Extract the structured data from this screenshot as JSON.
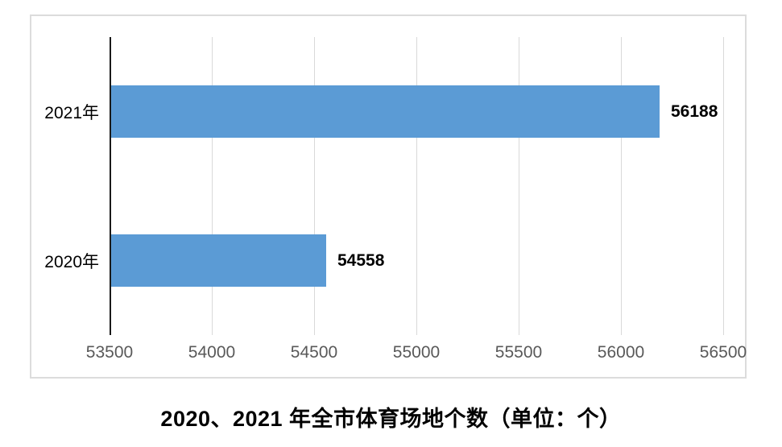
{
  "chart_data": {
    "type": "bar",
    "orientation": "horizontal",
    "title": "2020、2021 年全市体育场地个数（单位：个）",
    "categories": [
      "2021年",
      "2020年"
    ],
    "values": [
      56188,
      54558
    ],
    "data_labels": [
      "56188",
      "54558"
    ],
    "x_ticks": [
      53500,
      54000,
      54500,
      55000,
      55500,
      56000,
      56500
    ],
    "xlim": [
      53500,
      56500
    ],
    "xlabel": "",
    "ylabel": "",
    "grid": true,
    "legend_position": "none",
    "colors": {
      "bar": "#5B9BD5",
      "gridline": "#D9D9D9",
      "axis_line": "#1A1A1A",
      "tick_label": "#595959",
      "category_label": "#000000",
      "data_label": "#000000",
      "frame_border": "#DCDCDC"
    }
  }
}
